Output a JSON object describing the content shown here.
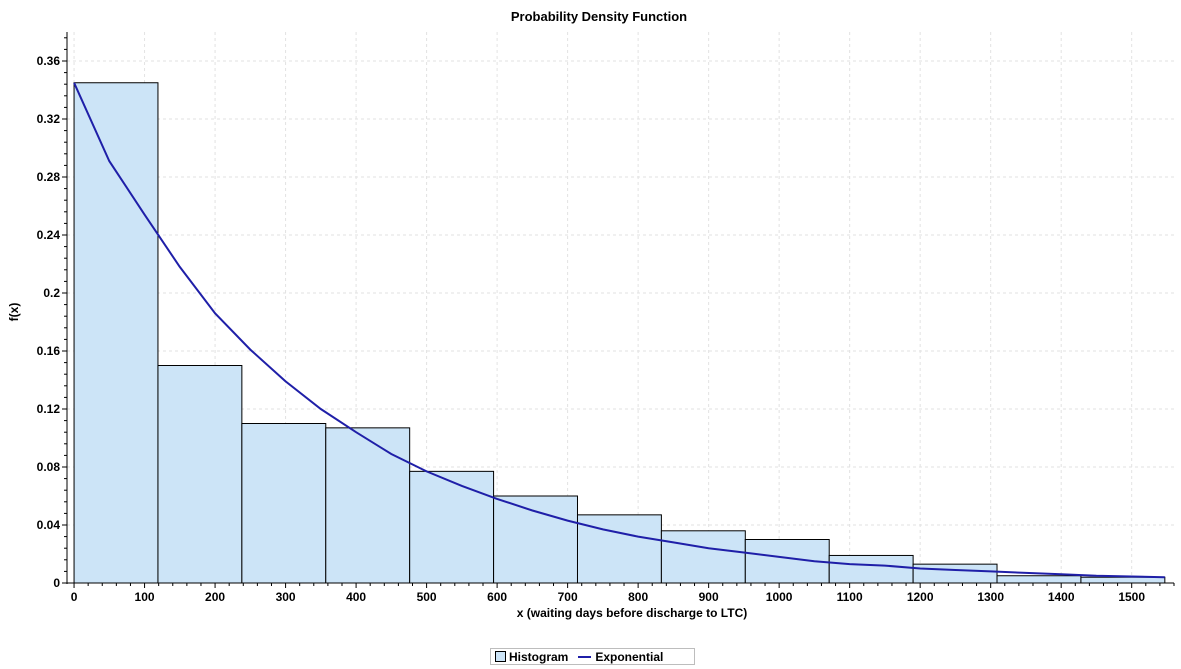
{
  "chart_data": {
    "type": "bar",
    "title": "Probability Density Function",
    "xlabel": "x (waiting days before discharge to LTC)",
    "ylabel": "f(x)",
    "xlim": [
      -10,
      1560
    ],
    "ylim": [
      0,
      0.38
    ],
    "xticks": [
      0,
      100,
      200,
      300,
      400,
      500,
      600,
      700,
      800,
      900,
      1000,
      1100,
      1200,
      1300,
      1400,
      1500
    ],
    "yticks": [
      0,
      0.04,
      0.08,
      0.12,
      0.16,
      0.2,
      0.24,
      0.28,
      0.32,
      0.36
    ],
    "ytick_labels": [
      "0",
      "0.04",
      "0.08",
      "0.12",
      "0.16",
      "0.2",
      "0.24",
      "0.28",
      "0.32",
      "0.36"
    ],
    "grid": true,
    "legend_placement": "bottom-center",
    "series": [
      {
        "name": "Histogram",
        "type": "histogram",
        "color": "#cce4f7",
        "edge_color": "#000000",
        "bins": [
          {
            "x0": 0,
            "x1": 119,
            "value": 0.345
          },
          {
            "x0": 119,
            "x1": 238,
            "value": 0.15
          },
          {
            "x0": 238,
            "x1": 357,
            "value": 0.11
          },
          {
            "x0": 357,
            "x1": 476,
            "value": 0.107
          },
          {
            "x0": 476,
            "x1": 595,
            "value": 0.077
          },
          {
            "x0": 595,
            "x1": 714,
            "value": 0.06
          },
          {
            "x0": 714,
            "x1": 833,
            "value": 0.047
          },
          {
            "x0": 833,
            "x1": 952,
            "value": 0.036
          },
          {
            "x0": 952,
            "x1": 1071,
            "value": 0.03
          },
          {
            "x0": 1071,
            "x1": 1190,
            "value": 0.019
          },
          {
            "x0": 1190,
            "x1": 1309,
            "value": 0.013
          },
          {
            "x0": 1309,
            "x1": 1428,
            "value": 0.005
          },
          {
            "x0": 1428,
            "x1": 1547,
            "value": 0.004
          }
        ]
      },
      {
        "name": "Exponential",
        "type": "line",
        "color": "#1f1fa8",
        "points": [
          [
            0,
            0.345
          ],
          [
            50,
            0.291
          ],
          [
            100,
            0.254
          ],
          [
            150,
            0.218
          ],
          [
            200,
            0.186
          ],
          [
            250,
            0.161
          ],
          [
            300,
            0.139
          ],
          [
            350,
            0.12
          ],
          [
            400,
            0.104
          ],
          [
            450,
            0.089
          ],
          [
            500,
            0.077
          ],
          [
            550,
            0.067
          ],
          [
            600,
            0.058
          ],
          [
            650,
            0.05
          ],
          [
            700,
            0.043
          ],
          [
            750,
            0.037
          ],
          [
            800,
            0.032
          ],
          [
            850,
            0.028
          ],
          [
            900,
            0.024
          ],
          [
            950,
            0.021
          ],
          [
            1000,
            0.018
          ],
          [
            1050,
            0.015
          ],
          [
            1100,
            0.013
          ],
          [
            1150,
            0.012
          ],
          [
            1200,
            0.01
          ],
          [
            1250,
            0.009
          ],
          [
            1300,
            0.008
          ],
          [
            1350,
            0.007
          ],
          [
            1400,
            0.006
          ],
          [
            1450,
            0.005
          ],
          [
            1500,
            0.0045
          ],
          [
            1547,
            0.004
          ]
        ]
      }
    ]
  }
}
